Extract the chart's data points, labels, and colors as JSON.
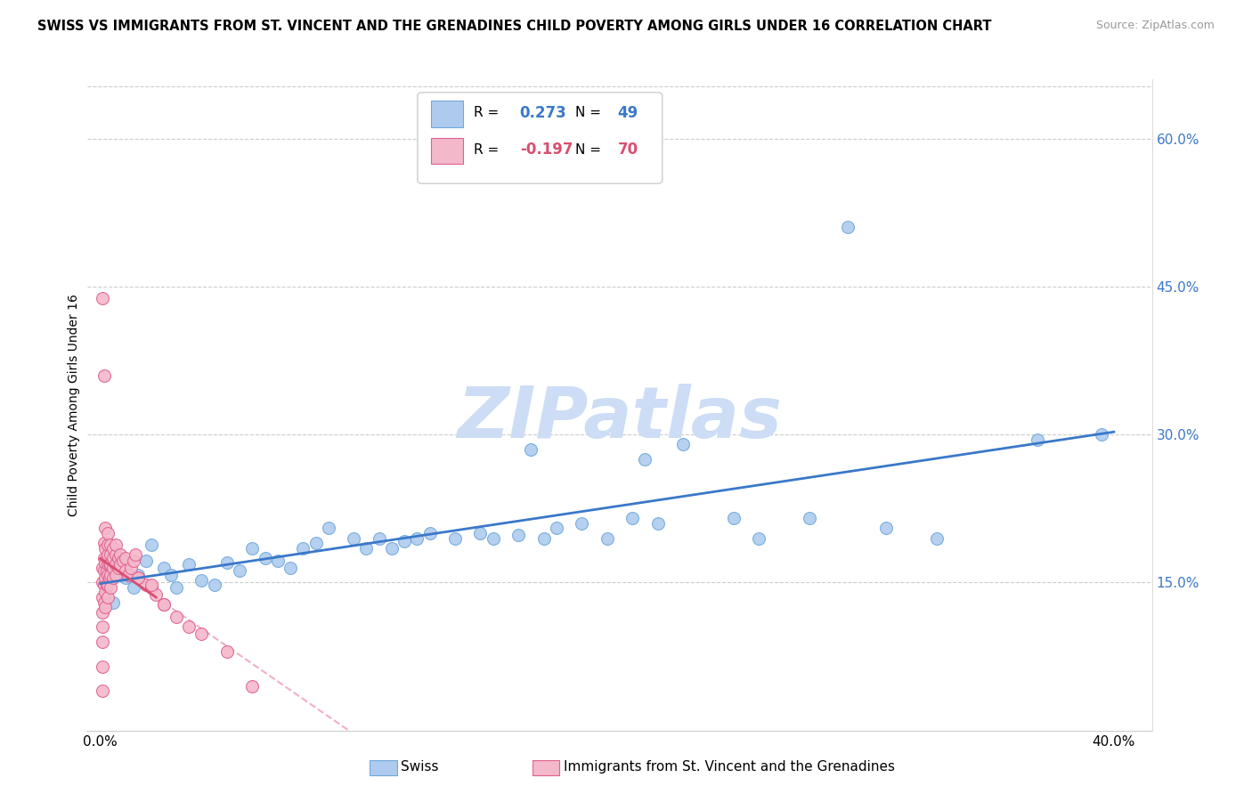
{
  "title": "SWISS VS IMMIGRANTS FROM ST. VINCENT AND THE GRENADINES CHILD POVERTY AMONG GIRLS UNDER 16 CORRELATION CHART",
  "source": "Source: ZipAtlas.com",
  "ylabel": "Child Poverty Among Girls Under 16",
  "x_tick_labels": [
    "0.0%",
    "",
    "",
    "",
    "40.0%"
  ],
  "x_tick_values": [
    0.0,
    0.1,
    0.2,
    0.3,
    0.4
  ],
  "y_tick_labels": [
    "15.0%",
    "30.0%",
    "45.0%",
    "60.0%"
  ],
  "y_tick_values": [
    0.15,
    0.3,
    0.45,
    0.6
  ],
  "xlim": [
    -0.005,
    0.415
  ],
  "ylim": [
    0.0,
    0.66
  ],
  "swiss_color": "#aecbef",
  "swiss_edge_color": "#6fa8dc",
  "immigrant_color": "#f4b8cb",
  "immigrant_edge_color": "#e06090",
  "regression_swiss_color": "#3a78c9",
  "regression_immigrant_color": "#d94f6e",
  "regression_immigrant_dashed_color": "#f0b0c0",
  "watermark_color": "#ccddf5",
  "swiss_x": [
    0.005,
    0.01,
    0.013,
    0.015,
    0.018,
    0.02,
    0.025,
    0.028,
    0.03,
    0.035,
    0.04,
    0.045,
    0.05,
    0.055,
    0.06,
    0.065,
    0.07,
    0.075,
    0.08,
    0.085,
    0.09,
    0.1,
    0.105,
    0.11,
    0.115,
    0.12,
    0.125,
    0.13,
    0.14,
    0.15,
    0.155,
    0.165,
    0.17,
    0.175,
    0.18,
    0.19,
    0.2,
    0.21,
    0.215,
    0.22,
    0.23,
    0.25,
    0.26,
    0.28,
    0.295,
    0.31,
    0.33,
    0.37,
    0.395
  ],
  "swiss_y": [
    0.13,
    0.155,
    0.145,
    0.158,
    0.172,
    0.188,
    0.165,
    0.158,
    0.145,
    0.168,
    0.152,
    0.148,
    0.17,
    0.162,
    0.185,
    0.175,
    0.172,
    0.165,
    0.185,
    0.19,
    0.205,
    0.195,
    0.185,
    0.195,
    0.185,
    0.192,
    0.195,
    0.2,
    0.195,
    0.2,
    0.195,
    0.198,
    0.285,
    0.195,
    0.205,
    0.21,
    0.195,
    0.215,
    0.275,
    0.21,
    0.29,
    0.215,
    0.195,
    0.215,
    0.51,
    0.205,
    0.195,
    0.295,
    0.3
  ],
  "immigrant_x": [
    0.001,
    0.001,
    0.001,
    0.001,
    0.001,
    0.001,
    0.001,
    0.001,
    0.001,
    0.0015,
    0.0015,
    0.0015,
    0.0015,
    0.0015,
    0.0015,
    0.002,
    0.002,
    0.002,
    0.002,
    0.002,
    0.002,
    0.0025,
    0.0025,
    0.0025,
    0.003,
    0.003,
    0.003,
    0.003,
    0.003,
    0.003,
    0.003,
    0.0035,
    0.0035,
    0.004,
    0.004,
    0.004,
    0.004,
    0.004,
    0.005,
    0.005,
    0.005,
    0.005,
    0.006,
    0.006,
    0.006,
    0.006,
    0.007,
    0.007,
    0.008,
    0.008,
    0.009,
    0.01,
    0.01,
    0.011,
    0.012,
    0.013,
    0.014,
    0.015,
    0.018,
    0.02,
    0.022,
    0.025,
    0.03,
    0.035,
    0.04,
    0.05,
    0.06,
    0.015,
    0.02,
    0.025
  ],
  "immigrant_y": [
    0.438,
    0.04,
    0.065,
    0.09,
    0.105,
    0.12,
    0.135,
    0.15,
    0.165,
    0.13,
    0.148,
    0.162,
    0.175,
    0.19,
    0.36,
    0.125,
    0.14,
    0.155,
    0.17,
    0.185,
    0.205,
    0.148,
    0.162,
    0.175,
    0.135,
    0.148,
    0.158,
    0.168,
    0.178,
    0.188,
    0.2,
    0.155,
    0.168,
    0.145,
    0.158,
    0.168,
    0.178,
    0.188,
    0.155,
    0.165,
    0.175,
    0.185,
    0.158,
    0.168,
    0.178,
    0.188,
    0.165,
    0.175,
    0.168,
    0.178,
    0.172,
    0.162,
    0.175,
    0.158,
    0.165,
    0.172,
    0.178,
    0.155,
    0.148,
    0.145,
    0.138,
    0.128,
    0.115,
    0.105,
    0.098,
    0.08,
    0.045,
    0.155,
    0.148,
    0.128
  ]
}
